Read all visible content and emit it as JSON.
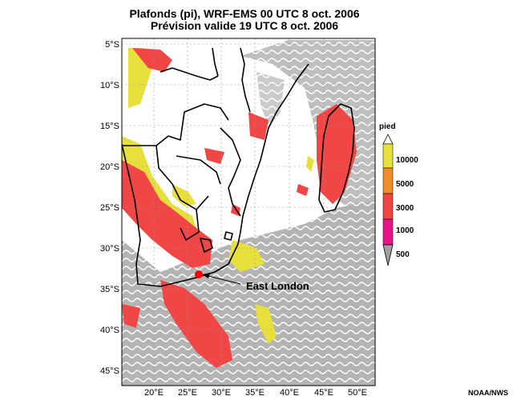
{
  "header": {
    "title_line1": "Plafonds (pi), WRF-EMS 00 UTC 8 oct. 2006",
    "title_line2": "Prévision valide 19 UTC 8 oct. 2006"
  },
  "map": {
    "lat_labels": [
      "5°S",
      "10°S",
      "15°S",
      "20°S",
      "25°S",
      "30°S",
      "35°S",
      "40°S",
      "45°S"
    ],
    "lon_labels": [
      "20°E",
      "25°E",
      "30°E",
      "35°E",
      "40°E",
      "45°E",
      "50°E"
    ],
    "annotation": "East London",
    "colors": {
      "land_clear": "#ffffff",
      "ocean_cloud": "#b4b4b4",
      "ceiling_10000": "#e6df3c",
      "ceiling_5000": "#f08c2a",
      "ceiling_3000": "#f04646",
      "ceiling_1000": "#e8148c",
      "ceiling_500": "#a0a0a0",
      "marker": "#ff0000",
      "border": "#000000"
    }
  },
  "legend": {
    "unit": "pied",
    "levels": [
      "10000",
      "5000",
      "3000",
      "1000",
      "500"
    ]
  },
  "credit": "NOAA/NWS"
}
